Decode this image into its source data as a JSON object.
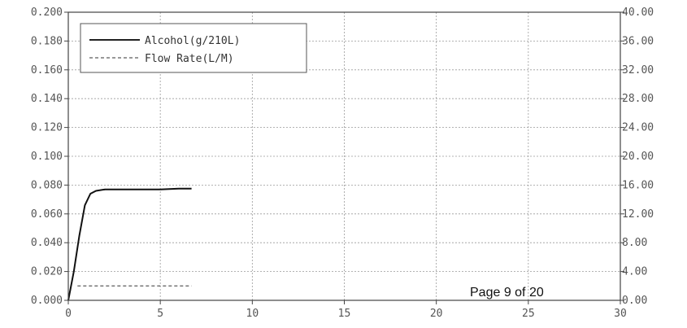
{
  "chart_data": {
    "type": "line",
    "x": [
      0,
      0.3,
      0.6,
      0.9,
      1.2,
      1.5,
      2,
      3,
      4,
      5,
      6,
      6.7
    ],
    "xlim": [
      0,
      30
    ],
    "xticks": [
      "0",
      "5",
      "10",
      "15",
      "20",
      "25",
      "30"
    ],
    "ylim_left": [
      0,
      0.2
    ],
    "yticks_left": [
      "0.000",
      "0.020",
      "0.040",
      "0.060",
      "0.080",
      "0.100",
      "0.120",
      "0.140",
      "0.160",
      "0.180",
      "0.200"
    ],
    "ylim_right": [
      0,
      40
    ],
    "yticks_right": [
      "0.00",
      "4.00",
      "8.00",
      "12.00",
      "16.00",
      "20.00",
      "24.00",
      "28.00",
      "32.00",
      "36.00",
      "40.00"
    ],
    "grid": true,
    "legend_position": "top-left",
    "series": [
      {
        "name": "Alcohol(g/210L)",
        "axis": "left",
        "style": "solid",
        "x": [
          0,
          0.3,
          0.6,
          0.9,
          1.2,
          1.5,
          2,
          3,
          4,
          5,
          6,
          6.7
        ],
        "values": [
          0.0,
          0.02,
          0.045,
          0.066,
          0.074,
          0.076,
          0.077,
          0.077,
          0.077,
          0.077,
          0.0775,
          0.0775
        ]
      },
      {
        "name": "Flow Rate(L/M)",
        "axis": "right",
        "style": "dashed",
        "x": [
          0.5,
          6.7
        ],
        "values": [
          2.0,
          2.0
        ]
      }
    ],
    "annotation": "Page 9 of 20"
  }
}
